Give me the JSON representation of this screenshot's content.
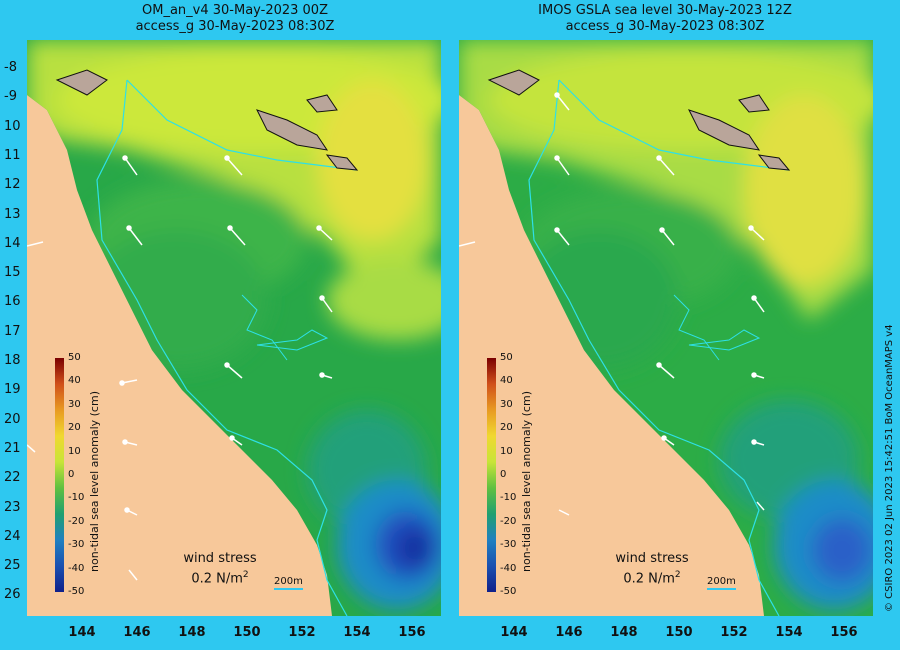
{
  "panels": [
    {
      "title_line1": "OM_an_v4  30-May-2023 00Z",
      "title_line2": "access_g 30-May-2023 08:30Z"
    },
    {
      "title_line1": "IMOS GSLA sea level  30-May-2023 12Z",
      "title_line2": "access_g 30-May-2023 08:30Z"
    }
  ],
  "lat_labels": [
    "-8",
    "-9",
    "10",
    "11",
    "12",
    "13",
    "14",
    "15",
    "16",
    "17",
    "18",
    "19",
    "20",
    "21",
    "22",
    "23",
    "24",
    "25",
    "26"
  ],
  "lon_labels": [
    "144",
    "146",
    "148",
    "150",
    "152",
    "154",
    "156"
  ],
  "colorbar": {
    "label": "non-tidal sea level anomaly (cm)",
    "ticks": [
      "50",
      "40",
      "30",
      "20",
      "10",
      "0",
      "-10",
      "-20",
      "-30",
      "-40",
      "-50"
    ],
    "range": [
      -50,
      50
    ]
  },
  "wind_legend": {
    "line1": "wind stress",
    "line2": "0.2 N/m",
    "sup": "2"
  },
  "scale_bar": "200m",
  "credit": "© CSIRO 2023   02 Jun 2023 15:42:51 BoM OceanMAPS v4",
  "colors": {
    "land": "#f7c89a",
    "frame": "#2ec8f0",
    "contour": "#2ee0e6"
  }
}
